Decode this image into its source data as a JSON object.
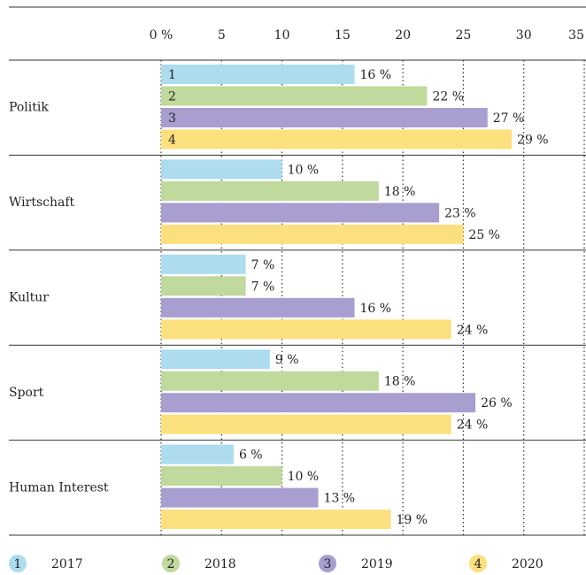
{
  "chart_data": {
    "type": "hbar",
    "categories": [
      "Politik",
      "Wirtschaft",
      "Kultur",
      "Sport",
      "Human Interest"
    ],
    "series": [
      {
        "name": "2017",
        "marker": "1",
        "color": "#acdcee",
        "values": [
          16,
          10,
          7,
          9,
          6
        ],
        "value_labels": [
          "16 %",
          "10 %",
          "7 %",
          "9 %",
          "6 %"
        ]
      },
      {
        "name": "2018",
        "marker": "2",
        "color": "#c0d99c",
        "values": [
          22,
          18,
          7,
          18,
          10
        ],
        "value_labels": [
          "22 %",
          "18 %",
          "7 %",
          "18 %",
          "10 %"
        ]
      },
      {
        "name": "2019",
        "marker": "3",
        "color": "#a89ecf",
        "values": [
          27,
          23,
          16,
          26,
          13
        ],
        "value_labels": [
          "27 %",
          "23 %",
          "16 %",
          "26 %",
          "13 %"
        ]
      },
      {
        "name": "2020",
        "marker": "4",
        "color": "#fde07e",
        "values": [
          29,
          25,
          24,
          24,
          19
        ],
        "value_labels": [
          "29 %",
          "25 %",
          "24 %",
          "24 %",
          "19 %"
        ]
      }
    ],
    "xlim": [
      0,
      35
    ],
    "xticks": [
      {
        "value": 0,
        "label": "0 %"
      },
      5,
      10,
      15,
      20,
      25,
      30,
      35
    ],
    "grid": true
  }
}
